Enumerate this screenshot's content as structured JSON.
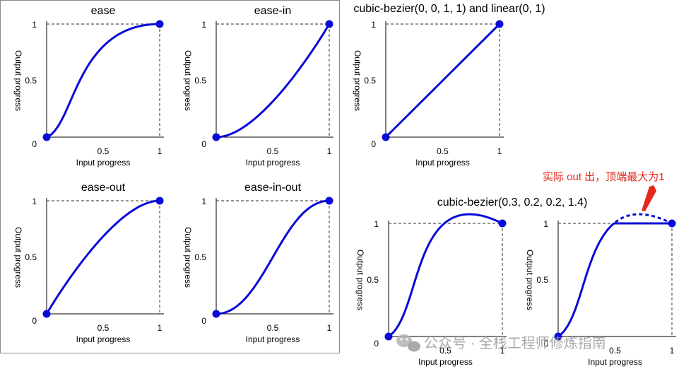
{
  "colors": {
    "curve": "#0a0ad8",
    "annotation": "#e6271e"
  },
  "axis_labels": {
    "x": "Input progress",
    "y": "Output progress"
  },
  "ticks": {
    "zero": "0",
    "half": "0.5",
    "one": "1"
  },
  "annotation_text": "实际 out 出，顶端最大为1",
  "watermark": "公众号 · 全栈工程师修炼指南",
  "chart_data": [
    {
      "type": "line",
      "title": "ease",
      "easing": [
        0.25,
        0.1,
        0.25,
        1.0
      ],
      "xlim": [
        0,
        1
      ],
      "ylim": [
        0,
        1
      ]
    },
    {
      "type": "line",
      "title": "ease-in",
      "easing": [
        0.42,
        0,
        1,
        1
      ],
      "xlim": [
        0,
        1
      ],
      "ylim": [
        0,
        1
      ]
    },
    {
      "type": "line",
      "title": "ease-out",
      "easing": [
        0,
        0,
        0.58,
        1
      ],
      "xlim": [
        0,
        1
      ],
      "ylim": [
        0,
        1
      ]
    },
    {
      "type": "line",
      "title": "ease-in-out",
      "easing": [
        0.42,
        0,
        0.58,
        1
      ],
      "xlim": [
        0,
        1
      ],
      "ylim": [
        0,
        1
      ]
    },
    {
      "type": "line",
      "title": "cubic-bezier(0, 0, 1, 1) and linear(0, 1)",
      "easing": [
        0,
        0,
        1,
        1
      ],
      "xlim": [
        0,
        1
      ],
      "ylim": [
        0,
        1
      ]
    },
    {
      "type": "line",
      "title": "cubic-bezier(0.3, 0.2, 0.2, 1.4)",
      "easing": [
        0.3,
        0.2,
        0.2,
        1.4
      ],
      "xlim": [
        0,
        1
      ],
      "ylim": [
        0,
        1
      ]
    },
    {
      "type": "line",
      "title": "",
      "easing": [
        0.3,
        0.2,
        0.2,
        1.4
      ],
      "clamped": true,
      "xlim": [
        0,
        1
      ],
      "ylim": [
        0,
        1
      ]
    }
  ]
}
